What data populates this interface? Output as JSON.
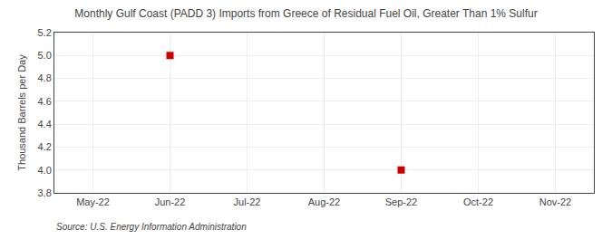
{
  "chart_data": {
    "type": "scatter",
    "title": "Monthly Gulf Coast (PADD 3) Imports from Greece of Residual Fuel Oil, Greater Than 1% Sulfur",
    "ylabel": "Thousand Barrels per Day",
    "source": "Source: U.S. Energy Information Administration",
    "categories": [
      "May-22",
      "Jun-22",
      "Jul-22",
      "Aug-22",
      "Sep-22",
      "Oct-22",
      "Nov-22"
    ],
    "values": [
      null,
      5.0,
      null,
      null,
      4.0,
      null,
      null
    ],
    "color": "#cc0000",
    "marker": "square",
    "ylim": [
      3.8,
      5.2
    ],
    "yticks": [
      3.8,
      {
        "value": 4.0,
        "label": "4.0"
      },
      4.2,
      4.4,
      4.6,
      4.8,
      {
        "value": 5.0,
        "label": "5.0"
      },
      5.2
    ],
    "grid": true
  }
}
